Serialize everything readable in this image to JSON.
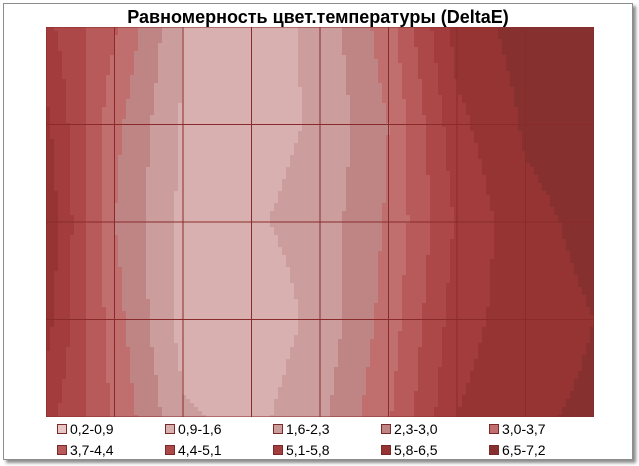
{
  "chart_data": {
    "type": "heatmap",
    "title": "Равномерность цвет.температуры (DeltaE)",
    "legend_position": "bottom",
    "grid": true,
    "bands": [
      {
        "label": "0,2-0,9",
        "min": 0.2,
        "max": 0.9,
        "color": "#e8c6c6"
      },
      {
        "label": "0,9-1,6",
        "min": 0.9,
        "max": 1.6,
        "color": "#d9b0b0"
      },
      {
        "label": "1,6-2,3",
        "min": 1.6,
        "max": 2.3,
        "color": "#cc9d9d"
      },
      {
        "label": "2,3-3,0",
        "min": 2.3,
        "max": 3.0,
        "color": "#bf8585"
      },
      {
        "label": "3,0-3,7",
        "min": 3.0,
        "max": 3.7,
        "color": "#c06e6e"
      },
      {
        "label": "3,7-4,4",
        "min": 3.7,
        "max": 4.4,
        "color": "#b85a5a"
      },
      {
        "label": "4,4-5,1",
        "min": 4.4,
        "max": 5.1,
        "color": "#ad4848"
      },
      {
        "label": "5,1-5,8",
        "min": 5.1,
        "max": 5.8,
        "color": "#a33c3c"
      },
      {
        "label": "5,8-6,5",
        "min": 5.8,
        "max": 6.5,
        "color": "#963434"
      },
      {
        "label": "6,5-7,2",
        "min": 6.5,
        "max": 7.2,
        "color": "#873030"
      }
    ],
    "grid_values": [
      [
        5.3,
        3.8,
        1.6,
        1.2,
        1.8,
        3.4,
        6.1,
        6.8,
        7.0
      ],
      [
        6.0,
        3.2,
        1.5,
        1.3,
        1.7,
        3.0,
        5.6,
        6.6,
        6.9
      ],
      [
        6.4,
        3.0,
        1.4,
        1.5,
        1.9,
        3.1,
        5.2,
        6.3,
        6.7
      ],
      [
        6.1,
        3.3,
        1.3,
        1.1,
        1.8,
        3.3,
        5.5,
        6.2,
        6.5
      ],
      [
        5.4,
        3.6,
        1.7,
        1.4,
        2.1,
        3.6,
        5.8,
        6.4,
        6.6
      ]
    ]
  }
}
